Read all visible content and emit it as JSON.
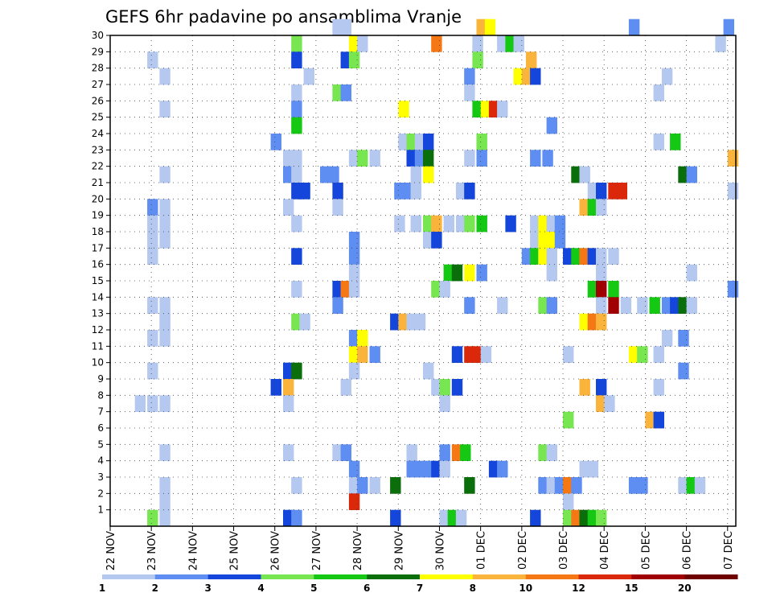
{
  "chart_data": {
    "type": "heatmap",
    "title": "GEFS 6hr padavine po ansamblima Vranje",
    "xlabel": "",
    "ylabel": "",
    "x_ticks": [
      "22 NOV",
      "23 NOV",
      "24 NOV",
      "25 NOV",
      "26 NOV",
      "27 NOV",
      "28 NOV",
      "29 NOV",
      "30 NOV",
      "01 DEC",
      "02 DEC",
      "03 DEC",
      "04 DEC",
      "05 DEC",
      "06 DEC",
      "07 DEC"
    ],
    "y_ticks": [
      "1",
      "2",
      "3",
      "4",
      "5",
      "6",
      "7",
      "8",
      "9",
      "10",
      "11",
      "12",
      "13",
      "14",
      "15",
      "16",
      "17",
      "18",
      "19",
      "20",
      "21",
      "22",
      "23",
      "24",
      "25",
      "26",
      "27",
      "28",
      "29",
      "30"
    ],
    "x_range_days": [
      0,
      15.2
    ],
    "y_range": [
      0,
      30
    ],
    "grid": true,
    "colorbar": {
      "levels": [
        "1",
        "2",
        "3",
        "4",
        "5",
        "6",
        "7",
        "8",
        "10",
        "12",
        "15",
        "20"
      ],
      "colors": [
        "#b4c8f0",
        "#5f8ef2",
        "#1446dc",
        "#78e650",
        "#14c814",
        "#0a6e0a",
        "#ffff00",
        "#fab43c",
        "#f57814",
        "#dc280a",
        "#a00000",
        "#6e0000"
      ]
    },
    "cells": [
      [
        30,
        5.4,
        0
      ],
      [
        30,
        5.6,
        0
      ],
      [
        30,
        8.9,
        7
      ],
      [
        30,
        9.1,
        6
      ],
      [
        30,
        12.6,
        1
      ],
      [
        30,
        14.9,
        1
      ],
      [
        29,
        4.4,
        3
      ],
      [
        29,
        5.8,
        6
      ],
      [
        29,
        6.0,
        0
      ],
      [
        29,
        7.8,
        8
      ],
      [
        29,
        8.8,
        0
      ],
      [
        29,
        9.4,
        0
      ],
      [
        29,
        9.6,
        4
      ],
      [
        29,
        9.8,
        0
      ],
      [
        29,
        14.7,
        0
      ],
      [
        28,
        0.9,
        0
      ],
      [
        28,
        4.4,
        2
      ],
      [
        28,
        5.6,
        2
      ],
      [
        28,
        5.8,
        3
      ],
      [
        28,
        8.8,
        3
      ],
      [
        28,
        10.1,
        7
      ],
      [
        27,
        1.2,
        0
      ],
      [
        27,
        4.7,
        0
      ],
      [
        27,
        8.6,
        1
      ],
      [
        27,
        9.8,
        6
      ],
      [
        27,
        10.0,
        7
      ],
      [
        27,
        10.2,
        2
      ],
      [
        27,
        13.4,
        0
      ],
      [
        26,
        4.4,
        0
      ],
      [
        26,
        5.4,
        3
      ],
      [
        26,
        5.6,
        1
      ],
      [
        26,
        8.6,
        0
      ],
      [
        26,
        13.2,
        0
      ],
      [
        25,
        1.2,
        0
      ],
      [
        25,
        4.4,
        1
      ],
      [
        25,
        7.0,
        6
      ],
      [
        25,
        8.8,
        4
      ],
      [
        25,
        9.0,
        6
      ],
      [
        25,
        9.2,
        9
      ],
      [
        25,
        9.4,
        0
      ],
      [
        24,
        4.4,
        4
      ],
      [
        24,
        10.6,
        1
      ],
      [
        23,
        3.9,
        1
      ],
      [
        23,
        7.0,
        0
      ],
      [
        23,
        7.2,
        3
      ],
      [
        23,
        7.4,
        0
      ],
      [
        23,
        7.6,
        2
      ],
      [
        23,
        8.9,
        3
      ],
      [
        23,
        13.2,
        0
      ],
      [
        23,
        13.6,
        4
      ],
      [
        22,
        4.2,
        0
      ],
      [
        22,
        4.4,
        0
      ],
      [
        22,
        5.8,
        0
      ],
      [
        22,
        6.0,
        3
      ],
      [
        22,
        6.3,
        0
      ],
      [
        22,
        7.2,
        2
      ],
      [
        22,
        7.4,
        1
      ],
      [
        22,
        7.6,
        5
      ],
      [
        22,
        8.6,
        0
      ],
      [
        22,
        8.9,
        1
      ],
      [
        22,
        10.2,
        1
      ],
      [
        22,
        10.5,
        1
      ],
      [
        22,
        15.0,
        7
      ],
      [
        21,
        1.2,
        0
      ],
      [
        21,
        4.2,
        1
      ],
      [
        21,
        4.4,
        0
      ],
      [
        21,
        5.1,
        1
      ],
      [
        21,
        5.3,
        1
      ],
      [
        21,
        7.3,
        0
      ],
      [
        21,
        7.6,
        6
      ],
      [
        21,
        11.2,
        5
      ],
      [
        21,
        11.4,
        0
      ],
      [
        21,
        13.8,
        5
      ],
      [
        21,
        14.0,
        1
      ],
      [
        20,
        4.4,
        2
      ],
      [
        20,
        4.6,
        2
      ],
      [
        20,
        5.4,
        2
      ],
      [
        20,
        6.9,
        1
      ],
      [
        20,
        7.1,
        1
      ],
      [
        20,
        7.3,
        0
      ],
      [
        20,
        8.4,
        0
      ],
      [
        20,
        8.6,
        2
      ],
      [
        20,
        11.6,
        0
      ],
      [
        20,
        11.8,
        2
      ],
      [
        20,
        12.1,
        9
      ],
      [
        20,
        12.3,
        9
      ],
      [
        20,
        15.0,
        0
      ],
      [
        19,
        0.9,
        1
      ],
      [
        19,
        1.2,
        0
      ],
      [
        19,
        4.2,
        0
      ],
      [
        19,
        5.4,
        0
      ],
      [
        19,
        11.4,
        7
      ],
      [
        19,
        11.6,
        4
      ],
      [
        19,
        11.8,
        0
      ],
      [
        18,
        0.9,
        0
      ],
      [
        18,
        1.2,
        0
      ],
      [
        18,
        4.4,
        0
      ],
      [
        18,
        6.9,
        0
      ],
      [
        18,
        7.3,
        0
      ],
      [
        18,
        7.6,
        3
      ],
      [
        18,
        7.8,
        7
      ],
      [
        18,
        8.1,
        0
      ],
      [
        18,
        8.4,
        0
      ],
      [
        18,
        8.6,
        3
      ],
      [
        18,
        8.9,
        4
      ],
      [
        18,
        9.6,
        2
      ],
      [
        18,
        10.2,
        0
      ],
      [
        18,
        10.4,
        6
      ],
      [
        18,
        10.6,
        0
      ],
      [
        18,
        10.8,
        1
      ],
      [
        17,
        0.9,
        0
      ],
      [
        17,
        1.2,
        0
      ],
      [
        17,
        5.8,
        1
      ],
      [
        17,
        7.6,
        0
      ],
      [
        17,
        7.8,
        2
      ],
      [
        17,
        10.2,
        0
      ],
      [
        17,
        10.4,
        6
      ],
      [
        17,
        10.6,
        6
      ],
      [
        17,
        10.8,
        1
      ],
      [
        16,
        0.9,
        0
      ],
      [
        16,
        4.4,
        2
      ],
      [
        16,
        5.8,
        1
      ],
      [
        16,
        10.0,
        1
      ],
      [
        16,
        10.2,
        4
      ],
      [
        16,
        10.4,
        6
      ],
      [
        16,
        10.6,
        0
      ],
      [
        16,
        11.0,
        2
      ],
      [
        16,
        11.2,
        4
      ],
      [
        16,
        11.4,
        8
      ],
      [
        16,
        11.6,
        2
      ],
      [
        16,
        11.8,
        0
      ],
      [
        16,
        12.1,
        0
      ],
      [
        15,
        5.8,
        0
      ],
      [
        15,
        8.1,
        4
      ],
      [
        15,
        8.3,
        5
      ],
      [
        15,
        8.6,
        6
      ],
      [
        15,
        8.9,
        1
      ],
      [
        15,
        10.6,
        0
      ],
      [
        15,
        11.8,
        0
      ],
      [
        15,
        14.0,
        0
      ],
      [
        14,
        4.4,
        0
      ],
      [
        14,
        5.4,
        2
      ],
      [
        14,
        5.6,
        8
      ],
      [
        14,
        5.8,
        0
      ],
      [
        14,
        7.8,
        3
      ],
      [
        14,
        8.0,
        0
      ],
      [
        14,
        11.6,
        4
      ],
      [
        14,
        11.8,
        10
      ],
      [
        14,
        12.1,
        4
      ],
      [
        14,
        15.0,
        1
      ],
      [
        13,
        0.9,
        0
      ],
      [
        13,
        1.2,
        0
      ],
      [
        13,
        5.4,
        1
      ],
      [
        13,
        8.6,
        1
      ],
      [
        13,
        9.4,
        0
      ],
      [
        13,
        10.4,
        3
      ],
      [
        13,
        10.6,
        1
      ],
      [
        13,
        11.8,
        0
      ],
      [
        13,
        12.1,
        10
      ],
      [
        13,
        12.4,
        0
      ],
      [
        13,
        12.8,
        0
      ],
      [
        13,
        13.1,
        4
      ],
      [
        13,
        13.4,
        1
      ],
      [
        13,
        13.6,
        2
      ],
      [
        13,
        13.8,
        5
      ],
      [
        13,
        14.0,
        0
      ],
      [
        12,
        1.2,
        0
      ],
      [
        12,
        1.2,
        0
      ],
      [
        12,
        4.4,
        3
      ],
      [
        12,
        4.6,
        0
      ],
      [
        12,
        6.8,
        2
      ],
      [
        12,
        7.0,
        7
      ],
      [
        12,
        7.2,
        0
      ],
      [
        12,
        7.4,
        0
      ],
      [
        12,
        11.4,
        6
      ],
      [
        12,
        11.6,
        8
      ],
      [
        12,
        11.8,
        7
      ],
      [
        11,
        0.9,
        0
      ],
      [
        11,
        1.2,
        0
      ],
      [
        11,
        5.8,
        1
      ],
      [
        11,
        6.0,
        6
      ],
      [
        11,
        13.4,
        0
      ],
      [
        11,
        13.8,
        1
      ],
      [
        10,
        5.8,
        6
      ],
      [
        10,
        6.0,
        7
      ],
      [
        10,
        6.3,
        1
      ],
      [
        10,
        8.3,
        2
      ],
      [
        10,
        8.6,
        9
      ],
      [
        10,
        8.8,
        9
      ],
      [
        10,
        9.0,
        0
      ],
      [
        10,
        11.0,
        0
      ],
      [
        10,
        12.6,
        6
      ],
      [
        10,
        12.8,
        3
      ],
      [
        10,
        13.2,
        0
      ],
      [
        9,
        0.9,
        0
      ],
      [
        9,
        4.2,
        2
      ],
      [
        9,
        4.4,
        5
      ],
      [
        9,
        5.8,
        0
      ],
      [
        9,
        7.6,
        0
      ],
      [
        9,
        13.8,
        1
      ],
      [
        8,
        3.9,
        2
      ],
      [
        8,
        4.2,
        7
      ],
      [
        8,
        5.6,
        0
      ],
      [
        8,
        7.8,
        0
      ],
      [
        8,
        8.0,
        3
      ],
      [
        8,
        8.3,
        2
      ],
      [
        8,
        11.4,
        7
      ],
      [
        8,
        11.8,
        2
      ],
      [
        8,
        13.2,
        0
      ],
      [
        7,
        0.6,
        0
      ],
      [
        7,
        0.9,
        0
      ],
      [
        7,
        1.2,
        0
      ],
      [
        7,
        4.2,
        0
      ],
      [
        7,
        8.0,
        0
      ],
      [
        7,
        11.8,
        7
      ],
      [
        7,
        12.0,
        0
      ],
      [
        6,
        11.0,
        3
      ],
      [
        6,
        13.0,
        7
      ],
      [
        6,
        13.2,
        2
      ],
      [
        4,
        1.2,
        0
      ],
      [
        4,
        4.2,
        0
      ],
      [
        4,
        5.4,
        0
      ],
      [
        4,
        5.6,
        1
      ],
      [
        4,
        7.2,
        0
      ],
      [
        4,
        8.0,
        1
      ],
      [
        4,
        8.3,
        8
      ],
      [
        4,
        8.5,
        4
      ],
      [
        4,
        10.4,
        3
      ],
      [
        4,
        10.6,
        0
      ],
      [
        3,
        5.8,
        1
      ],
      [
        3,
        7.2,
        1
      ],
      [
        3,
        7.4,
        1
      ],
      [
        3,
        7.6,
        1
      ],
      [
        3,
        7.8,
        2
      ],
      [
        3,
        8.0,
        0
      ],
      [
        3,
        9.2,
        2
      ],
      [
        3,
        9.4,
        1
      ],
      [
        3,
        11.4,
        0
      ],
      [
        3,
        11.6,
        0
      ],
      [
        2,
        1.2,
        0
      ],
      [
        2,
        4.4,
        0
      ],
      [
        2,
        5.8,
        0
      ],
      [
        2,
        6.0,
        1
      ],
      [
        2,
        6.3,
        0
      ],
      [
        2,
        6.8,
        5
      ],
      [
        2,
        8.6,
        5
      ],
      [
        2,
        10.4,
        1
      ],
      [
        2,
        10.6,
        0
      ],
      [
        2,
        10.8,
        1
      ],
      [
        2,
        11.0,
        8
      ],
      [
        2,
        11.2,
        1
      ],
      [
        2,
        12.6,
        1
      ],
      [
        2,
        12.8,
        1
      ],
      [
        2,
        13.8,
        0
      ],
      [
        2,
        14.0,
        4
      ],
      [
        2,
        14.2,
        0
      ],
      [
        1,
        1.2,
        0
      ],
      [
        1,
        5.8,
        9
      ],
      [
        1,
        11.0,
        0
      ],
      [
        0,
        0.9,
        3
      ],
      [
        0,
        1.2,
        0
      ],
      [
        0,
        4.2,
        2
      ],
      [
        0,
        4.4,
        1
      ],
      [
        0,
        6.8,
        2
      ],
      [
        0,
        8.0,
        0
      ],
      [
        0,
        8.2,
        4
      ],
      [
        0,
        8.4,
        0
      ],
      [
        0,
        10.2,
        2
      ],
      [
        0,
        11.0,
        3
      ],
      [
        0,
        11.2,
        8
      ],
      [
        0,
        11.4,
        5
      ],
      [
        0,
        11.6,
        4
      ],
      [
        0,
        11.8,
        3
      ]
    ]
  }
}
